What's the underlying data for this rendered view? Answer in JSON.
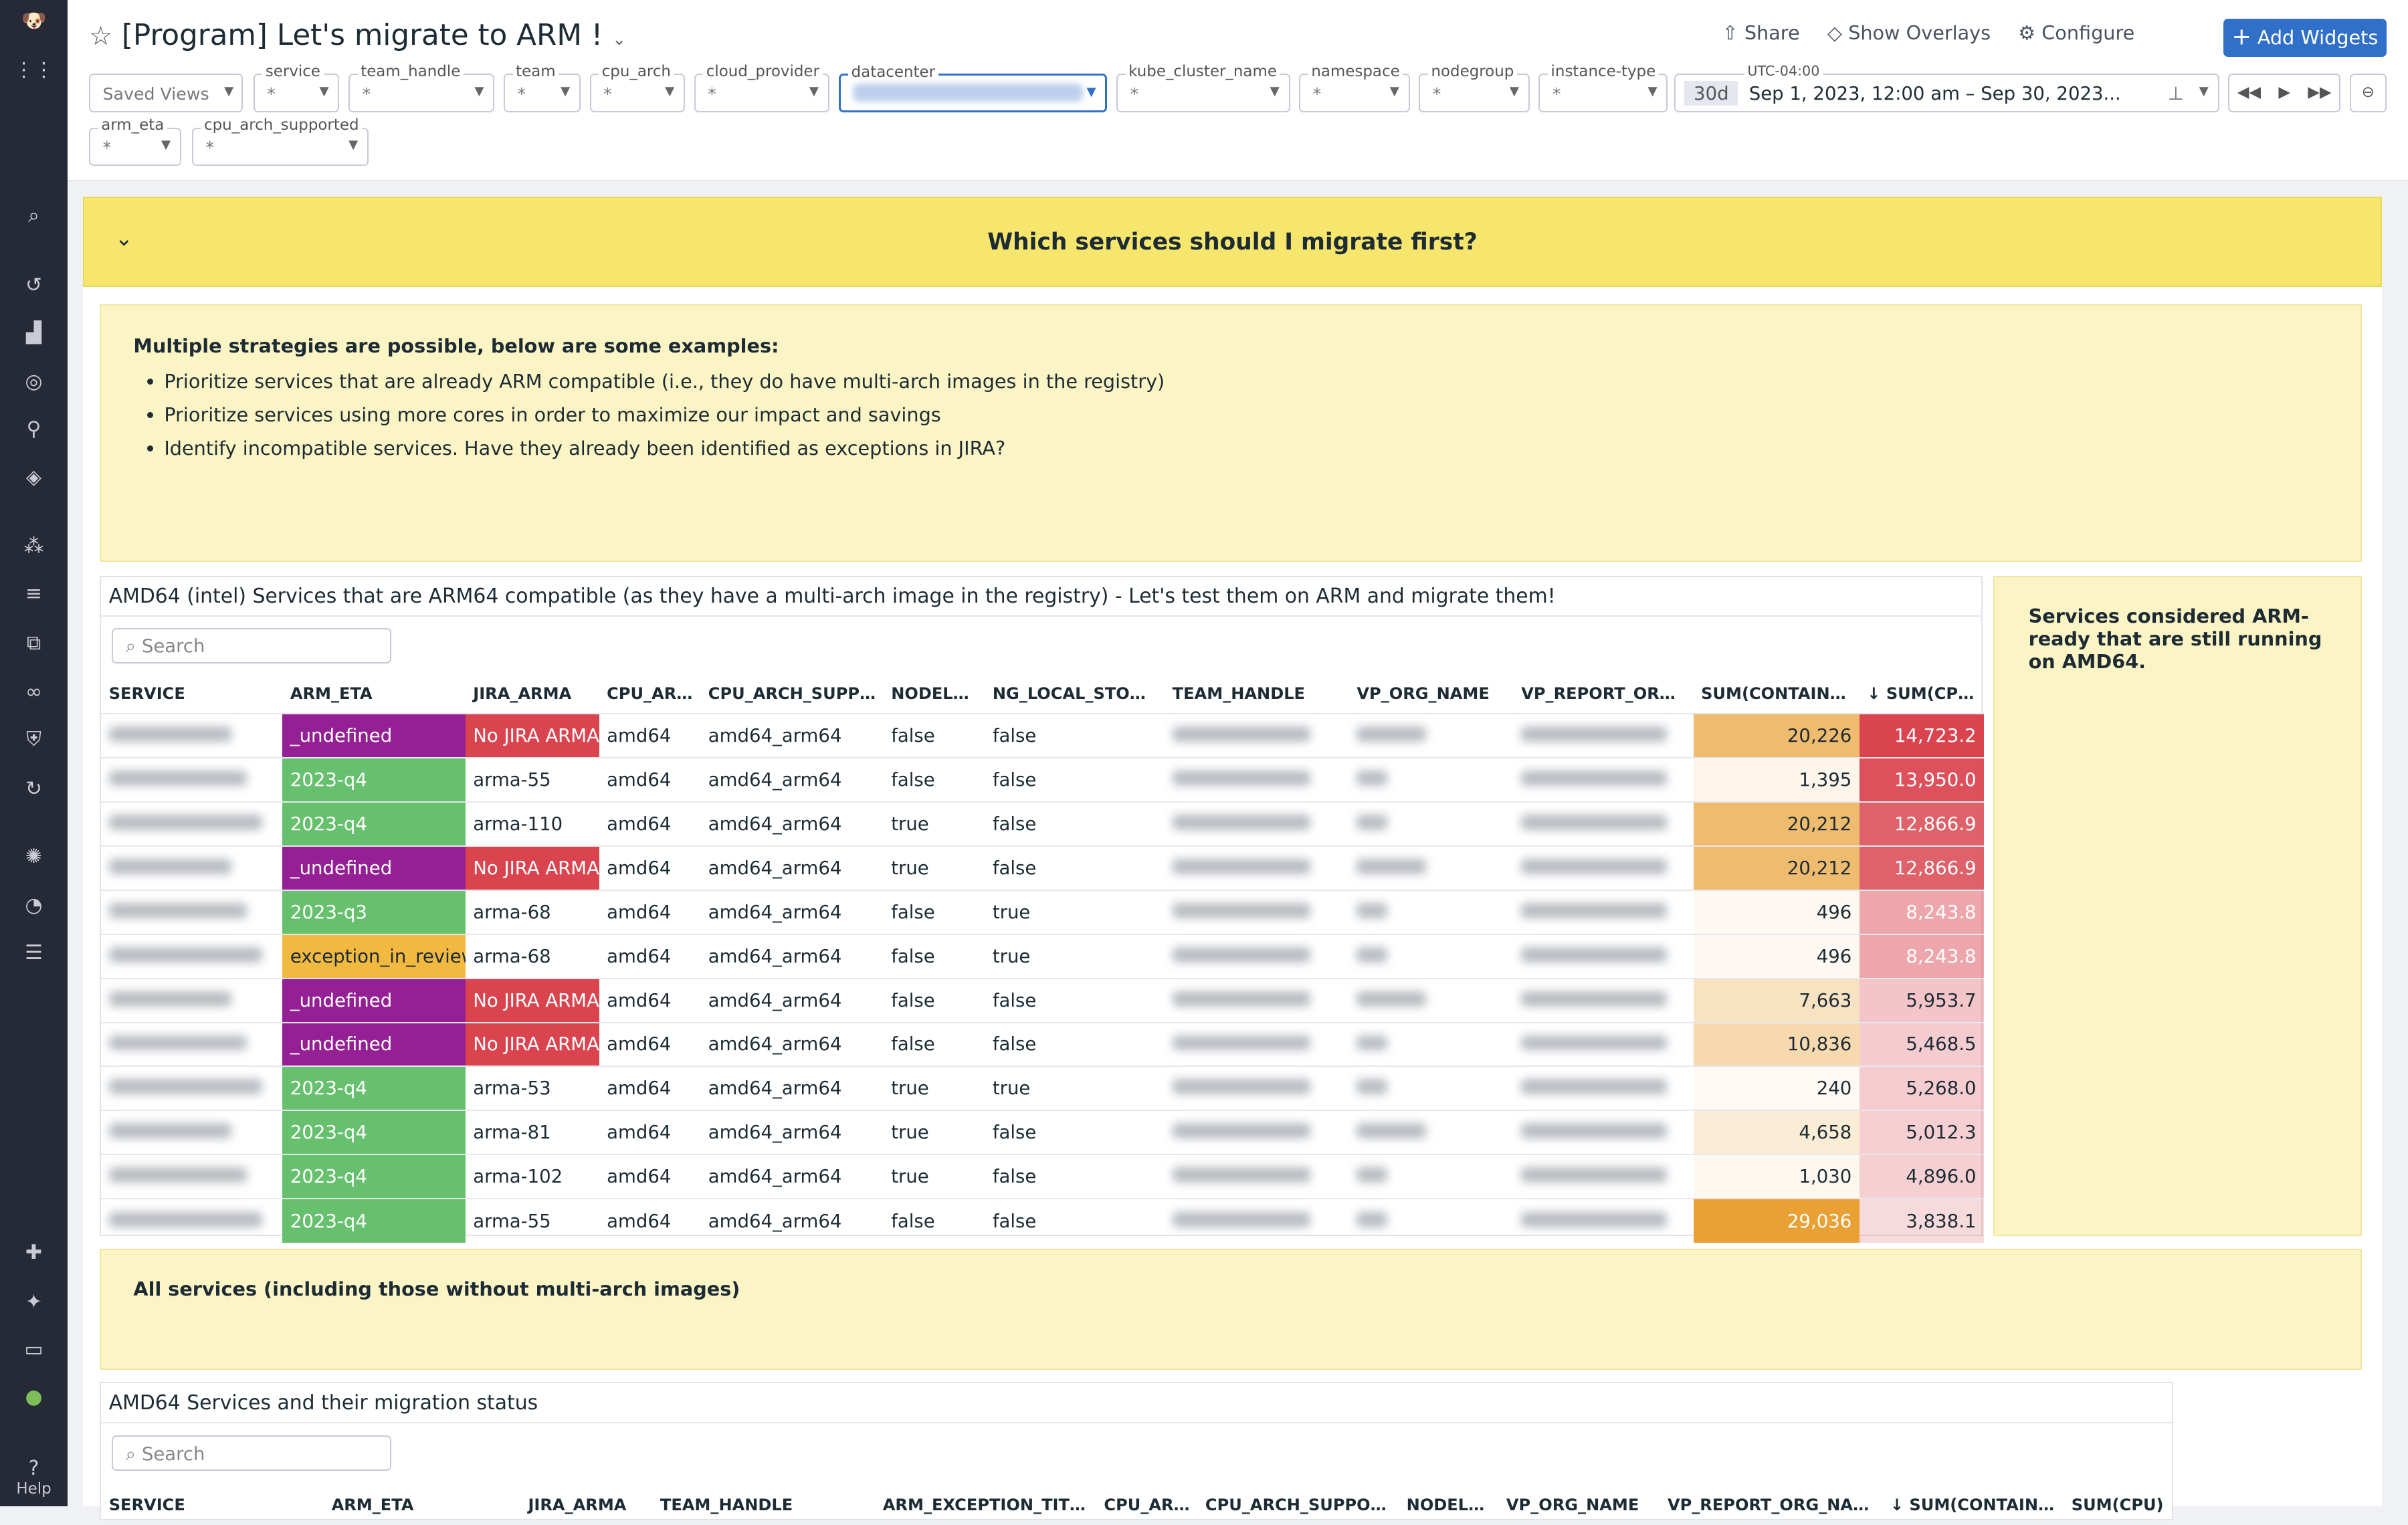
{
  "sidebar": {
    "help_label": "Help",
    "icons": [
      "datadog-logo-icon",
      "apps-grid-icon",
      "search-icon",
      "history-icon",
      "dashboard-icon",
      "watchdog-icon",
      "binoculars-icon",
      "infrastructure-icon",
      "integrations-icon",
      "logs-icon",
      "apm-icon",
      "links-icon",
      "security-icon",
      "ci-icon",
      "bug-icon",
      "performance-icon",
      "synthetics-icon",
      "extensions-icon",
      "sparkle-icon",
      "monitors-icon",
      "avatar-icon"
    ]
  },
  "header": {
    "title": "[Program] Let's migrate to ARM !",
    "share": "Share",
    "overlays": "Show Overlays",
    "configure": "Configure",
    "add_widgets": "Add Widgets",
    "saved_views": "Saved Views",
    "filters": [
      {
        "label": "service",
        "value": "*"
      },
      {
        "label": "team_handle",
        "value": "*"
      },
      {
        "label": "team",
        "value": "*"
      },
      {
        "label": "cpu_arch",
        "value": "*"
      },
      {
        "label": "cloud_provider",
        "value": "*"
      },
      {
        "label": "datacenter",
        "value": ""
      },
      {
        "label": "kube_cluster_name",
        "value": "*"
      },
      {
        "label": "namespace",
        "value": "*"
      },
      {
        "label": "nodegroup",
        "value": "*"
      },
      {
        "label": "instance-type",
        "value": "*"
      },
      {
        "label": "arm_eta",
        "value": "*"
      },
      {
        "label": "cpu_arch_supported",
        "value": "*"
      }
    ],
    "timezone": "UTC-04:00",
    "time_preset": "30d",
    "time_range": "Sep 1, 2023, 12:00 am – Sep 30, 2023..."
  },
  "group": {
    "title": "Which services should I migrate first?"
  },
  "note1": {
    "heading": "Multiple strategies are possible, below are some examples:",
    "bullets": [
      "Prioritize services that are already ARM compatible (i.e., they do have multi-arch images in the registry)",
      "Prioritize services using more cores in order to maximize our impact and savings",
      "Identify incompatible services. Have they already been identified as exceptions in JIRA?"
    ]
  },
  "note2": {
    "text": "Services considered ARM-ready that are still running on AMD64."
  },
  "note3": {
    "text": "All services (including those without multi-arch images)"
  },
  "table1": {
    "title": "AMD64 (intel) Services that are ARM64 compatible (as they have a multi-arch image in the registry) - Let's test them on ARM and migrate them!",
    "search_placeholder": "Search",
    "columns": [
      "SERVICE",
      "ARM_ETA",
      "JIRA_ARMA",
      "CPU_ARCH",
      "CPU_ARCH_SUPPO...",
      "NODELESS",
      "NG_LOCAL_STORAGE",
      "TEAM_HANDLE",
      "VP_ORG_NAME",
      "VP_REPORT_ORG_N...",
      "SUM(CONTAINERS)",
      "SUM(CPU)"
    ],
    "sort_column": "SUM(CPU)",
    "sort_direction": "desc",
    "rows": [
      {
        "arm_eta": "_undefined",
        "jira": "No JIRA ARMA",
        "cpu_arch": "amd64",
        "supported": "amd64_arm64",
        "nodeless": "false",
        "ng_local": "false",
        "containers": "20,226",
        "cpu": "14,723.2"
      },
      {
        "arm_eta": "2023-q4",
        "jira": "arma-55",
        "cpu_arch": "amd64",
        "supported": "amd64_arm64",
        "nodeless": "false",
        "ng_local": "false",
        "containers": "1,395",
        "cpu": "13,950.0"
      },
      {
        "arm_eta": "2023-q4",
        "jira": "arma-110",
        "cpu_arch": "amd64",
        "supported": "amd64_arm64",
        "nodeless": "true",
        "ng_local": "false",
        "containers": "20,212",
        "cpu": "12,866.9"
      },
      {
        "arm_eta": "_undefined",
        "jira": "No JIRA ARMA",
        "cpu_arch": "amd64",
        "supported": "amd64_arm64",
        "nodeless": "true",
        "ng_local": "false",
        "containers": "20,212",
        "cpu": "12,866.9"
      },
      {
        "arm_eta": "2023-q3",
        "jira": "arma-68",
        "cpu_arch": "amd64",
        "supported": "amd64_arm64",
        "nodeless": "false",
        "ng_local": "true",
        "containers": "496",
        "cpu": "8,243.8"
      },
      {
        "arm_eta": "exception_in_review",
        "jira": "arma-68",
        "cpu_arch": "amd64",
        "supported": "amd64_arm64",
        "nodeless": "false",
        "ng_local": "true",
        "containers": "496",
        "cpu": "8,243.8"
      },
      {
        "arm_eta": "_undefined",
        "jira": "No JIRA ARMA",
        "cpu_arch": "amd64",
        "supported": "amd64_arm64",
        "nodeless": "false",
        "ng_local": "false",
        "containers": "7,663",
        "cpu": "5,953.7"
      },
      {
        "arm_eta": "_undefined",
        "jira": "No JIRA ARMA",
        "cpu_arch": "amd64",
        "supported": "amd64_arm64",
        "nodeless": "false",
        "ng_local": "false",
        "containers": "10,836",
        "cpu": "5,468.5"
      },
      {
        "arm_eta": "2023-q4",
        "jira": "arma-53",
        "cpu_arch": "amd64",
        "supported": "amd64_arm64",
        "nodeless": "true",
        "ng_local": "true",
        "containers": "240",
        "cpu": "5,268.0"
      },
      {
        "arm_eta": "2023-q4",
        "jira": "arma-81",
        "cpu_arch": "amd64",
        "supported": "amd64_arm64",
        "nodeless": "true",
        "ng_local": "false",
        "containers": "4,658",
        "cpu": "5,012.3"
      },
      {
        "arm_eta": "2023-q4",
        "jira": "arma-102",
        "cpu_arch": "amd64",
        "supported": "amd64_arm64",
        "nodeless": "true",
        "ng_local": "false",
        "containers": "1,030",
        "cpu": "4,896.0"
      },
      {
        "arm_eta": "2023-q4",
        "jira": "arma-55",
        "cpu_arch": "amd64",
        "supported": "amd64_arm64",
        "nodeless": "false",
        "ng_local": "false",
        "containers": "29,036",
        "cpu": "3,838.1"
      }
    ]
  },
  "table2": {
    "title": "AMD64 Services and their migration status",
    "search_placeholder": "Search",
    "columns": [
      "SERVICE",
      "ARM_ETA",
      "JIRA_ARMA",
      "TEAM_HANDLE",
      "ARM_EXCEPTION_TITLE",
      "CPU_ARCH",
      "CPU_ARCH_SUPPORTED",
      "NODELESS",
      "VP_ORG_NAME",
      "VP_REPORT_ORG_NAME",
      "SUM(CONTAINERS)",
      "SUM(CPU)"
    ],
    "sort_column": "SUM(CONTAINERS)",
    "sort_direction": "desc"
  },
  "colors": {
    "accent": "#3070c9",
    "undefined": "#951f94",
    "q4": "#67c06e",
    "exception": "#f2b940",
    "no_jira": "#d9444f",
    "group_header": "#f7e66e",
    "note_bg": "#fbf4c4"
  }
}
